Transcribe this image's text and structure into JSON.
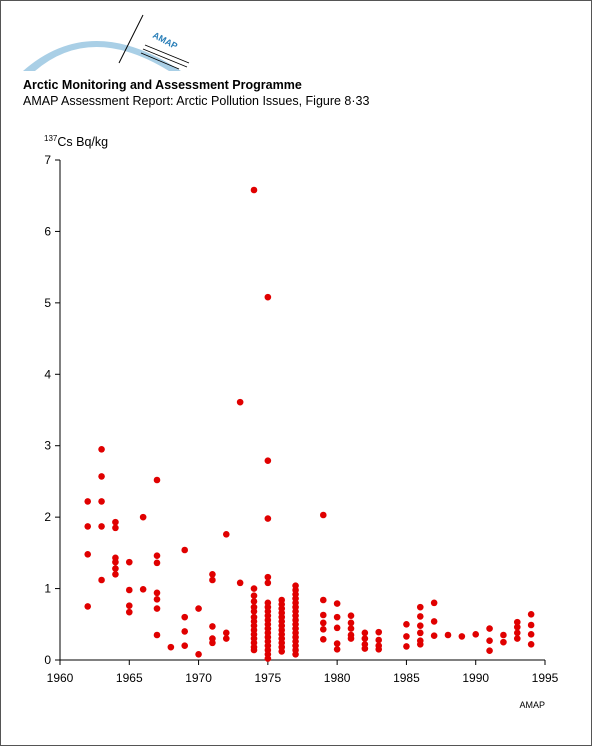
{
  "header": {
    "logo_text": "AMAP",
    "org_title": "Arctic Monitoring and Assessment Programme",
    "subtitle": "AMAP Assessment Report: Arctic Pollution Issues, Figure 8·33"
  },
  "credit": "AMAP",
  "colors": {
    "points": "#e00000",
    "logo_arc": "#a9cfe6",
    "axis": "#000000"
  },
  "chart_data": {
    "type": "scatter",
    "title": "",
    "ylabel_prefix": "137",
    "ylabel_main": "Cs Bq/kg",
    "xlabel": "",
    "xlim": [
      1960,
      1995
    ],
    "ylim": [
      0,
      7
    ],
    "xticks": [
      1960,
      1965,
      1970,
      1975,
      1980,
      1985,
      1990,
      1995
    ],
    "yticks": [
      0,
      1,
      2,
      3,
      4,
      5,
      6,
      7
    ],
    "grid": false,
    "legend": "none",
    "points": [
      [
        1962,
        2.22
      ],
      [
        1962,
        1.87
      ],
      [
        1962,
        1.48
      ],
      [
        1962,
        0.75
      ],
      [
        1963,
        2.95
      ],
      [
        1963,
        2.57
      ],
      [
        1963,
        2.22
      ],
      [
        1963,
        1.87
      ],
      [
        1963,
        1.12
      ],
      [
        1964,
        1.93
      ],
      [
        1964,
        1.85
      ],
      [
        1964,
        1.43
      ],
      [
        1964,
        1.37
      ],
      [
        1964,
        1.28
      ],
      [
        1964,
        1.2
      ],
      [
        1965,
        1.37
      ],
      [
        1965,
        0.98
      ],
      [
        1965,
        0.76
      ],
      [
        1965,
        0.67
      ],
      [
        1966,
        2.0
      ],
      [
        1966,
        0.99
      ],
      [
        1967,
        2.52
      ],
      [
        1967,
        1.46
      ],
      [
        1967,
        1.36
      ],
      [
        1967,
        0.94
      ],
      [
        1967,
        0.85
      ],
      [
        1967,
        0.72
      ],
      [
        1967,
        0.35
      ],
      [
        1968,
        0.18
      ],
      [
        1969,
        1.54
      ],
      [
        1969,
        0.6
      ],
      [
        1969,
        0.4
      ],
      [
        1969,
        0.2
      ],
      [
        1970,
        0.72
      ],
      [
        1970,
        0.08
      ],
      [
        1971,
        1.2
      ],
      [
        1971,
        1.12
      ],
      [
        1971,
        0.47
      ],
      [
        1971,
        0.3
      ],
      [
        1971,
        0.24
      ],
      [
        1972,
        1.76
      ],
      [
        1972,
        0.38
      ],
      [
        1972,
        0.3
      ],
      [
        1973,
        3.61
      ],
      [
        1973,
        1.08
      ],
      [
        1974,
        6.58
      ],
      [
        1974,
        1.0
      ],
      [
        1974,
        0.9
      ],
      [
        1974,
        0.82
      ],
      [
        1974,
        0.74
      ],
      [
        1974,
        0.68
      ],
      [
        1974,
        0.6
      ],
      [
        1974,
        0.54
      ],
      [
        1974,
        0.48
      ],
      [
        1974,
        0.42
      ],
      [
        1974,
        0.36
      ],
      [
        1974,
        0.3
      ],
      [
        1974,
        0.24
      ],
      [
        1974,
        0.18
      ],
      [
        1974,
        0.14
      ],
      [
        1975,
        5.08
      ],
      [
        1975,
        2.79
      ],
      [
        1975,
        1.98
      ],
      [
        1975,
        1.16
      ],
      [
        1975,
        1.08
      ],
      [
        1975,
        0.8
      ],
      [
        1975,
        0.74
      ],
      [
        1975,
        0.68
      ],
      [
        1975,
        0.62
      ],
      [
        1975,
        0.56
      ],
      [
        1975,
        0.5
      ],
      [
        1975,
        0.44
      ],
      [
        1975,
        0.38
      ],
      [
        1975,
        0.32
      ],
      [
        1975,
        0.26
      ],
      [
        1975,
        0.2
      ],
      [
        1975,
        0.14
      ],
      [
        1975,
        0.08
      ],
      [
        1975,
        0.02
      ],
      [
        1976,
        0.84
      ],
      [
        1976,
        0.78
      ],
      [
        1976,
        0.72
      ],
      [
        1976,
        0.66
      ],
      [
        1976,
        0.6
      ],
      [
        1976,
        0.54
      ],
      [
        1976,
        0.48
      ],
      [
        1976,
        0.42
      ],
      [
        1976,
        0.36
      ],
      [
        1976,
        0.3
      ],
      [
        1976,
        0.24
      ],
      [
        1976,
        0.18
      ],
      [
        1976,
        0.12
      ],
      [
        1977,
        1.04
      ],
      [
        1977,
        0.98
      ],
      [
        1977,
        0.92
      ],
      [
        1977,
        0.86
      ],
      [
        1977,
        0.8
      ],
      [
        1977,
        0.74
      ],
      [
        1977,
        0.68
      ],
      [
        1977,
        0.62
      ],
      [
        1977,
        0.56
      ],
      [
        1977,
        0.5
      ],
      [
        1977,
        0.44
      ],
      [
        1977,
        0.38
      ],
      [
        1977,
        0.32
      ],
      [
        1977,
        0.26
      ],
      [
        1977,
        0.2
      ],
      [
        1977,
        0.14
      ],
      [
        1977,
        0.08
      ],
      [
        1979,
        2.03
      ],
      [
        1979,
        0.84
      ],
      [
        1979,
        0.63
      ],
      [
        1979,
        0.52
      ],
      [
        1979,
        0.43
      ],
      [
        1979,
        0.29
      ],
      [
        1980,
        0.79
      ],
      [
        1980,
        0.6
      ],
      [
        1980,
        0.45
      ],
      [
        1980,
        0.23
      ],
      [
        1980,
        0.15
      ],
      [
        1981,
        0.62
      ],
      [
        1981,
        0.52
      ],
      [
        1981,
        0.44
      ],
      [
        1981,
        0.35
      ],
      [
        1981,
        0.3
      ],
      [
        1982,
        0.38
      ],
      [
        1982,
        0.3
      ],
      [
        1982,
        0.22
      ],
      [
        1982,
        0.16
      ],
      [
        1983,
        0.39
      ],
      [
        1983,
        0.28
      ],
      [
        1983,
        0.2
      ],
      [
        1983,
        0.15
      ],
      [
        1985,
        0.5
      ],
      [
        1985,
        0.33
      ],
      [
        1985,
        0.19
      ],
      [
        1986,
        0.74
      ],
      [
        1986,
        0.61
      ],
      [
        1986,
        0.48
      ],
      [
        1986,
        0.38
      ],
      [
        1986,
        0.27
      ],
      [
        1986,
        0.22
      ],
      [
        1987,
        0.8
      ],
      [
        1987,
        0.54
      ],
      [
        1987,
        0.34
      ],
      [
        1988,
        0.35
      ],
      [
        1989,
        0.33
      ],
      [
        1990,
        0.36
      ],
      [
        1991,
        0.44
      ],
      [
        1991,
        0.27
      ],
      [
        1991,
        0.13
      ],
      [
        1992,
        0.35
      ],
      [
        1992,
        0.25
      ],
      [
        1993,
        0.53
      ],
      [
        1993,
        0.46
      ],
      [
        1993,
        0.38
      ],
      [
        1993,
        0.3
      ],
      [
        1994,
        0.64
      ],
      [
        1994,
        0.49
      ],
      [
        1994,
        0.36
      ],
      [
        1994,
        0.22
      ]
    ]
  }
}
